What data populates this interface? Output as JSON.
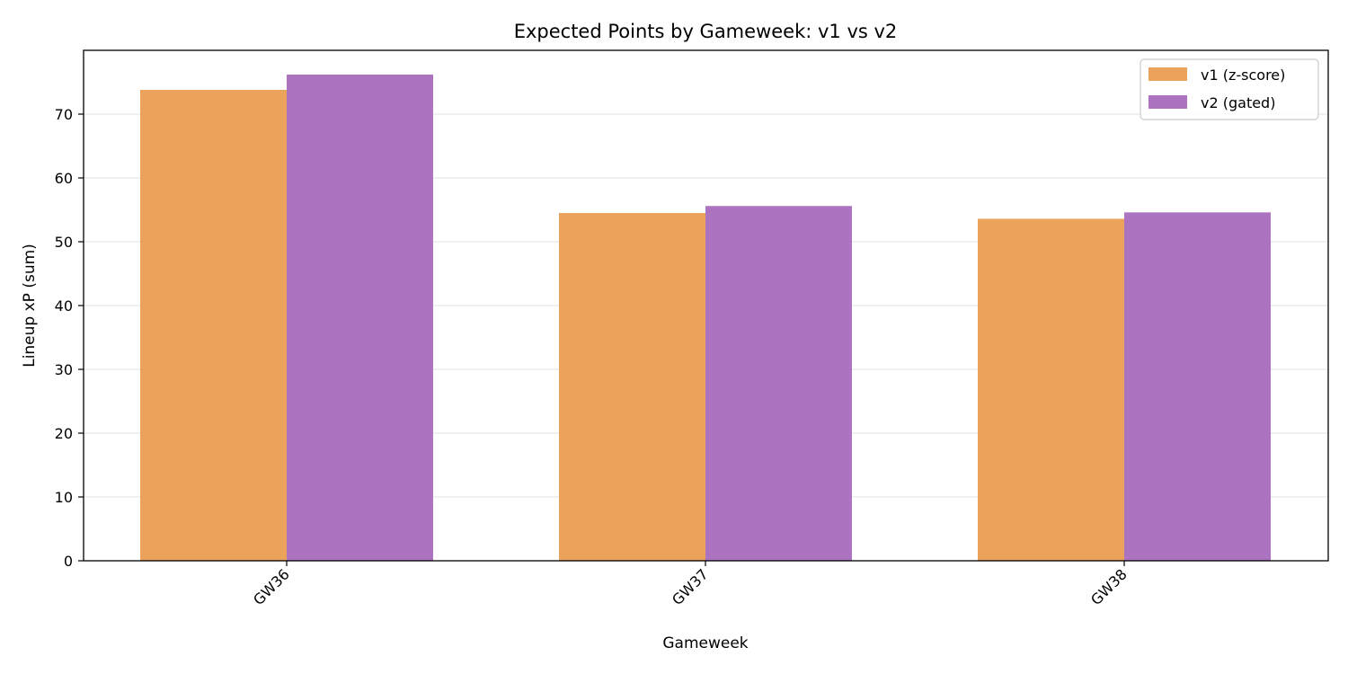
{
  "chart_data": {
    "type": "bar",
    "title": "Expected Points by Gameweek: v1 vs v2",
    "xlabel": "Gameweek",
    "ylabel": "Lineup xP (sum)",
    "categories": [
      "GW36",
      "GW37",
      "GW38"
    ],
    "series": [
      {
        "name": "v1 (z-score)",
        "color": "#EBA25B",
        "values": [
          73.8,
          54.5,
          53.6
        ]
      },
      {
        "name": "v2 (gated)",
        "color": "#AB73C0",
        "values": [
          76.2,
          55.6,
          54.6
        ]
      }
    ],
    "ylim": [
      0,
      80
    ],
    "yticks": [
      0,
      10,
      20,
      30,
      40,
      50,
      60,
      70
    ],
    "grid": "horizontal",
    "legend_position": "top-right"
  }
}
